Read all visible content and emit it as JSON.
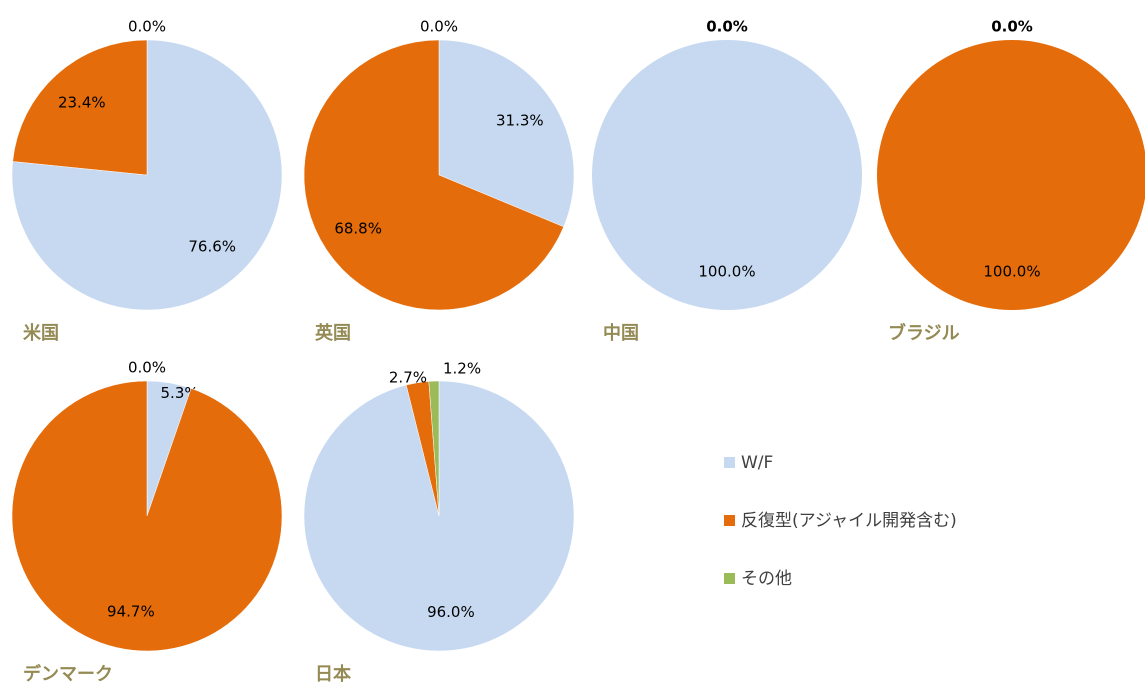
{
  "chart_data": [
    {
      "type": "pie",
      "title": "米国",
      "values": [
        76.6,
        23.4,
        0.0
      ],
      "value_labels": [
        "76.6%",
        "23.4%",
        "0.0%"
      ]
    },
    {
      "type": "pie",
      "title": "英国",
      "values": [
        31.3,
        68.8,
        0.0
      ],
      "value_labels": [
        "31.3%",
        "68.8%",
        "0.0%"
      ]
    },
    {
      "type": "pie",
      "title": "中国",
      "values": [
        100.0,
        0.0,
        0.0
      ],
      "value_labels": [
        "100.0%",
        "0.0%",
        null
      ]
    },
    {
      "type": "pie",
      "title": "ブラジル",
      "values": [
        0.0,
        100.0,
        0.0
      ],
      "value_labels": [
        "0.0%",
        "100.0%",
        null
      ]
    },
    {
      "type": "pie",
      "title": "デンマーク",
      "values": [
        5.3,
        94.7,
        0.0
      ],
      "value_labels": [
        "5.3%",
        "94.7%",
        "0.0%"
      ]
    },
    {
      "type": "pie",
      "title": "日本",
      "values": [
        96.0,
        2.7,
        1.2
      ],
      "value_labels": [
        "96.0%",
        "2.7%",
        "1.2%"
      ]
    }
  ],
  "legend": {
    "names": [
      "W/F",
      "反復型(アジャイル開発含む)",
      "その他"
    ],
    "colors": [
      "#c6d9f1",
      "#e46c0a",
      "#9bbb59"
    ]
  }
}
